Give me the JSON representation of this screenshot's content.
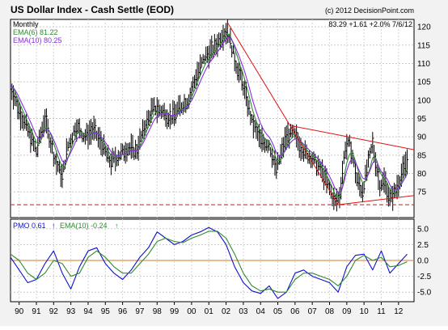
{
  "chart_data": [
    {
      "type": "line",
      "title": "US Dollar Index - Cash Settle (EOD)",
      "copyright": "(c) 2012 DecisionPoint.com",
      "period": "Monthly",
      "readout": "83.29  +1.61  +2.0%  7/6/12",
      "legend": [
        {
          "label": "EMA(6) 81.22",
          "color": "#2e8b2e"
        },
        {
          "label": "EMA(10) 80.25",
          "color": "#8a2be2"
        }
      ],
      "ylim": [
        68,
        122
      ],
      "yticks": [
        75,
        80,
        85,
        90,
        95,
        100,
        105,
        110,
        115,
        120
      ],
      "xlim": [
        1989.5,
        2012.9
      ],
      "x_labels": [
        "90",
        "91",
        "92",
        "93",
        "94",
        "95",
        "96",
        "97",
        "98",
        "99",
        "00",
        "01",
        "02",
        "03",
        "04",
        "05",
        "06",
        "07",
        "08",
        "09",
        "10",
        "11",
        "12"
      ],
      "price_series": {
        "name": "",
        "x": [
          1989.5,
          1990.0,
          1990.5,
          1991.0,
          1991.5,
          1992.0,
          1992.5,
          1992.8,
          1993.3,
          1993.8,
          1994.3,
          1994.8,
          1995.3,
          1995.8,
          1996.3,
          1996.8,
          1997.3,
          1997.8,
          1998.3,
          1998.8,
          1999.3,
          1999.8,
          2000.3,
          2000.8,
          2001.3,
          2001.8,
          2002.1,
          2002.5,
          2003.0,
          2003.5,
          2004.0,
          2004.5,
          2004.9,
          2005.5,
          2005.9,
          2006.5,
          2007.0,
          2007.5,
          2008.0,
          2008.3,
          2008.6,
          2008.9,
          2009.2,
          2009.6,
          2009.9,
          2010.3,
          2010.5,
          2010.9,
          2011.2,
          2011.5,
          2011.8,
          2012.2,
          2012.5
        ],
        "y": [
          104,
          97,
          92,
          86,
          95,
          85,
          79,
          87,
          93,
          90,
          92,
          88,
          83,
          85,
          87,
          86,
          93,
          98,
          97,
          95,
          98,
          100,
          107,
          112,
          114,
          118,
          119,
          111,
          104,
          94,
          89,
          88,
          81,
          90,
          91,
          86,
          84,
          81,
          76,
          72,
          74,
          87,
          88,
          78,
          75,
          84,
          88,
          77,
          78,
          73,
          75,
          80,
          83.3
        ]
      },
      "trendlines": [
        {
          "name": "",
          "color": "#e01010",
          "points": [
            [
              2002.1,
              121
            ],
            [
              2008.5,
              71.5
            ]
          ]
        },
        {
          "name": "",
          "color": "#e01010",
          "points": [
            [
              2005.8,
              93
            ],
            [
              2012.9,
              86.5
            ]
          ]
        },
        {
          "name": "",
          "color": "#e01010",
          "points": [
            [
              2008.5,
              71.5
            ],
            [
              2012.9,
              74
            ]
          ]
        }
      ],
      "support_line": {
        "y": 71.5,
        "color": "#e01010",
        "style": "dashed"
      }
    },
    {
      "type": "line",
      "legend": [
        {
          "label": "PMO  0.61",
          "color": "#1010d0"
        },
        {
          "label": "EMA(10)  -0.24",
          "color": "#2e8b2e"
        }
      ],
      "ylim": [
        -6.5,
        6.5
      ],
      "yticks": [
        -5.0,
        -2.5,
        0.0,
        2.5,
        5.0
      ],
      "tick_labels": [
        "-5.0",
        "-2.5",
        "0.0",
        "2.5",
        "5.0"
      ],
      "zero_line": {
        "y": 0,
        "color": "#d27a2a"
      },
      "series": [
        {
          "name": "PMO",
          "color": "#1010d0",
          "x": [
            1989.5,
            1990.0,
            1990.5,
            1991.0,
            1991.5,
            1992.0,
            1992.5,
            1993.0,
            1993.5,
            1994.0,
            1994.5,
            1995.0,
            1995.5,
            1996.0,
            1996.5,
            1997.0,
            1997.5,
            1998.0,
            1998.5,
            1999.0,
            1999.5,
            2000.0,
            2000.5,
            2001.0,
            2001.5,
            2002.0,
            2002.5,
            2003.0,
            2003.5,
            2004.0,
            2004.5,
            2005.0,
            2005.5,
            2006.0,
            2006.5,
            2007.0,
            2007.5,
            2008.0,
            2008.5,
            2009.0,
            2009.5,
            2010.0,
            2010.5,
            2011.0,
            2011.5,
            2012.0,
            2012.5
          ],
          "y": [
            0.5,
            -1.5,
            -3.5,
            -3,
            -0.5,
            1.5,
            -2,
            -4.5,
            -1,
            1.5,
            2,
            -0.5,
            -2,
            -3,
            -1.5,
            0.5,
            2,
            4.5,
            3.5,
            2.5,
            3,
            4,
            4.5,
            5.2,
            4.5,
            2.5,
            -1,
            -3.5,
            -4.8,
            -5.2,
            -4,
            -6,
            -5,
            -2,
            -1.5,
            -2.5,
            -3,
            -3.5,
            -5,
            -1,
            0.8,
            1,
            -1.5,
            1.5,
            -2,
            -0.5,
            1
          ]
        },
        {
          "name": "EMA(10)",
          "color": "#2e8b2e",
          "x": [
            1989.5,
            1990.0,
            1990.5,
            1991.0,
            1991.5,
            1992.0,
            1992.5,
            1993.0,
            1993.5,
            1994.0,
            1994.5,
            1995.0,
            1995.5,
            1996.0,
            1996.5,
            1997.0,
            1997.5,
            1998.0,
            1998.5,
            1999.0,
            1999.5,
            2000.0,
            2000.5,
            2001.0,
            2001.5,
            2002.0,
            2002.5,
            2003.0,
            2003.5,
            2004.0,
            2004.5,
            2005.0,
            2005.5,
            2006.0,
            2006.5,
            2007.0,
            2007.5,
            2008.0,
            2008.5,
            2009.0,
            2009.5,
            2010.0,
            2010.5,
            2011.0,
            2011.5,
            2012.0,
            2012.5
          ],
          "y": [
            1,
            0,
            -2,
            -3,
            -2,
            0,
            -0.5,
            -2.5,
            -2,
            0.5,
            1.5,
            0.5,
            -1,
            -2,
            -2,
            -0.5,
            1,
            3,
            3.5,
            3,
            2.8,
            3.5,
            4,
            4.6,
            4.6,
            3.5,
            1,
            -2,
            -4,
            -4.8,
            -4.5,
            -5,
            -5,
            -3,
            -2,
            -2,
            -2.5,
            -3,
            -4,
            -2.5,
            0,
            0.8,
            0,
            0.5,
            -1,
            -0.8,
            -0.2
          ]
        }
      ]
    }
  ]
}
